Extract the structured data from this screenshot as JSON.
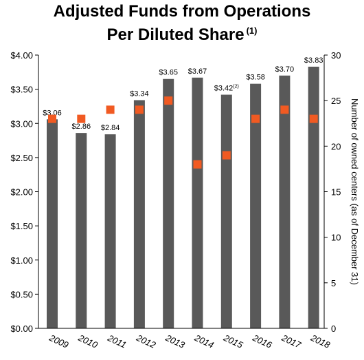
{
  "title": {
    "line1": "Adjusted Funds from Operations",
    "line2": "Per Diluted Share",
    "footnote": "(1)"
  },
  "colors": {
    "bar": "#595959",
    "marker": "#f15a22",
    "axis": "#000000"
  },
  "chart_data": {
    "type": "bar",
    "categories": [
      "2009",
      "2010",
      "2011",
      "2012",
      "2013",
      "2014",
      "2015",
      "2016",
      "2017",
      "2018"
    ],
    "series": [
      {
        "type": "bar",
        "axis": "left",
        "values": [
          3.06,
          2.86,
          2.84,
          3.34,
          3.65,
          3.67,
          3.42,
          3.58,
          3.7,
          3.83
        ],
        "labels": [
          "$3.06",
          "$2.86",
          "$2.84",
          "$3.34",
          "$3.65",
          "$3.67",
          "$3.42",
          "$3.58",
          "$3.70",
          "$3.83"
        ],
        "label_notes": [
          "",
          "",
          "",
          "",
          "",
          "",
          "(2)",
          "",
          "",
          ""
        ]
      },
      {
        "type": "scatter",
        "axis": "right",
        "values": [
          23,
          23,
          24,
          24,
          25,
          18,
          19,
          23,
          24,
          23
        ]
      }
    ],
    "y_left": {
      "ylim": [
        0,
        4
      ],
      "ticks": [
        0,
        0.5,
        1,
        1.5,
        2,
        2.5,
        3,
        3.5,
        4
      ],
      "tick_labels": [
        "$0.00",
        "$0.50",
        "$1.00",
        "$1.50",
        "$2.00",
        "$2.50",
        "$3.00",
        "$3.50",
        "$4.00"
      ]
    },
    "y_right": {
      "ylim": [
        0,
        30
      ],
      "ticks": [
        0,
        5,
        10,
        15,
        20,
        25,
        30
      ],
      "tick_labels": [
        "0",
        "5",
        "10",
        "15",
        "20",
        "25",
        "30"
      ],
      "label": "Number of owned centers (as of December 31)"
    },
    "grid": false,
    "legend": "none"
  }
}
